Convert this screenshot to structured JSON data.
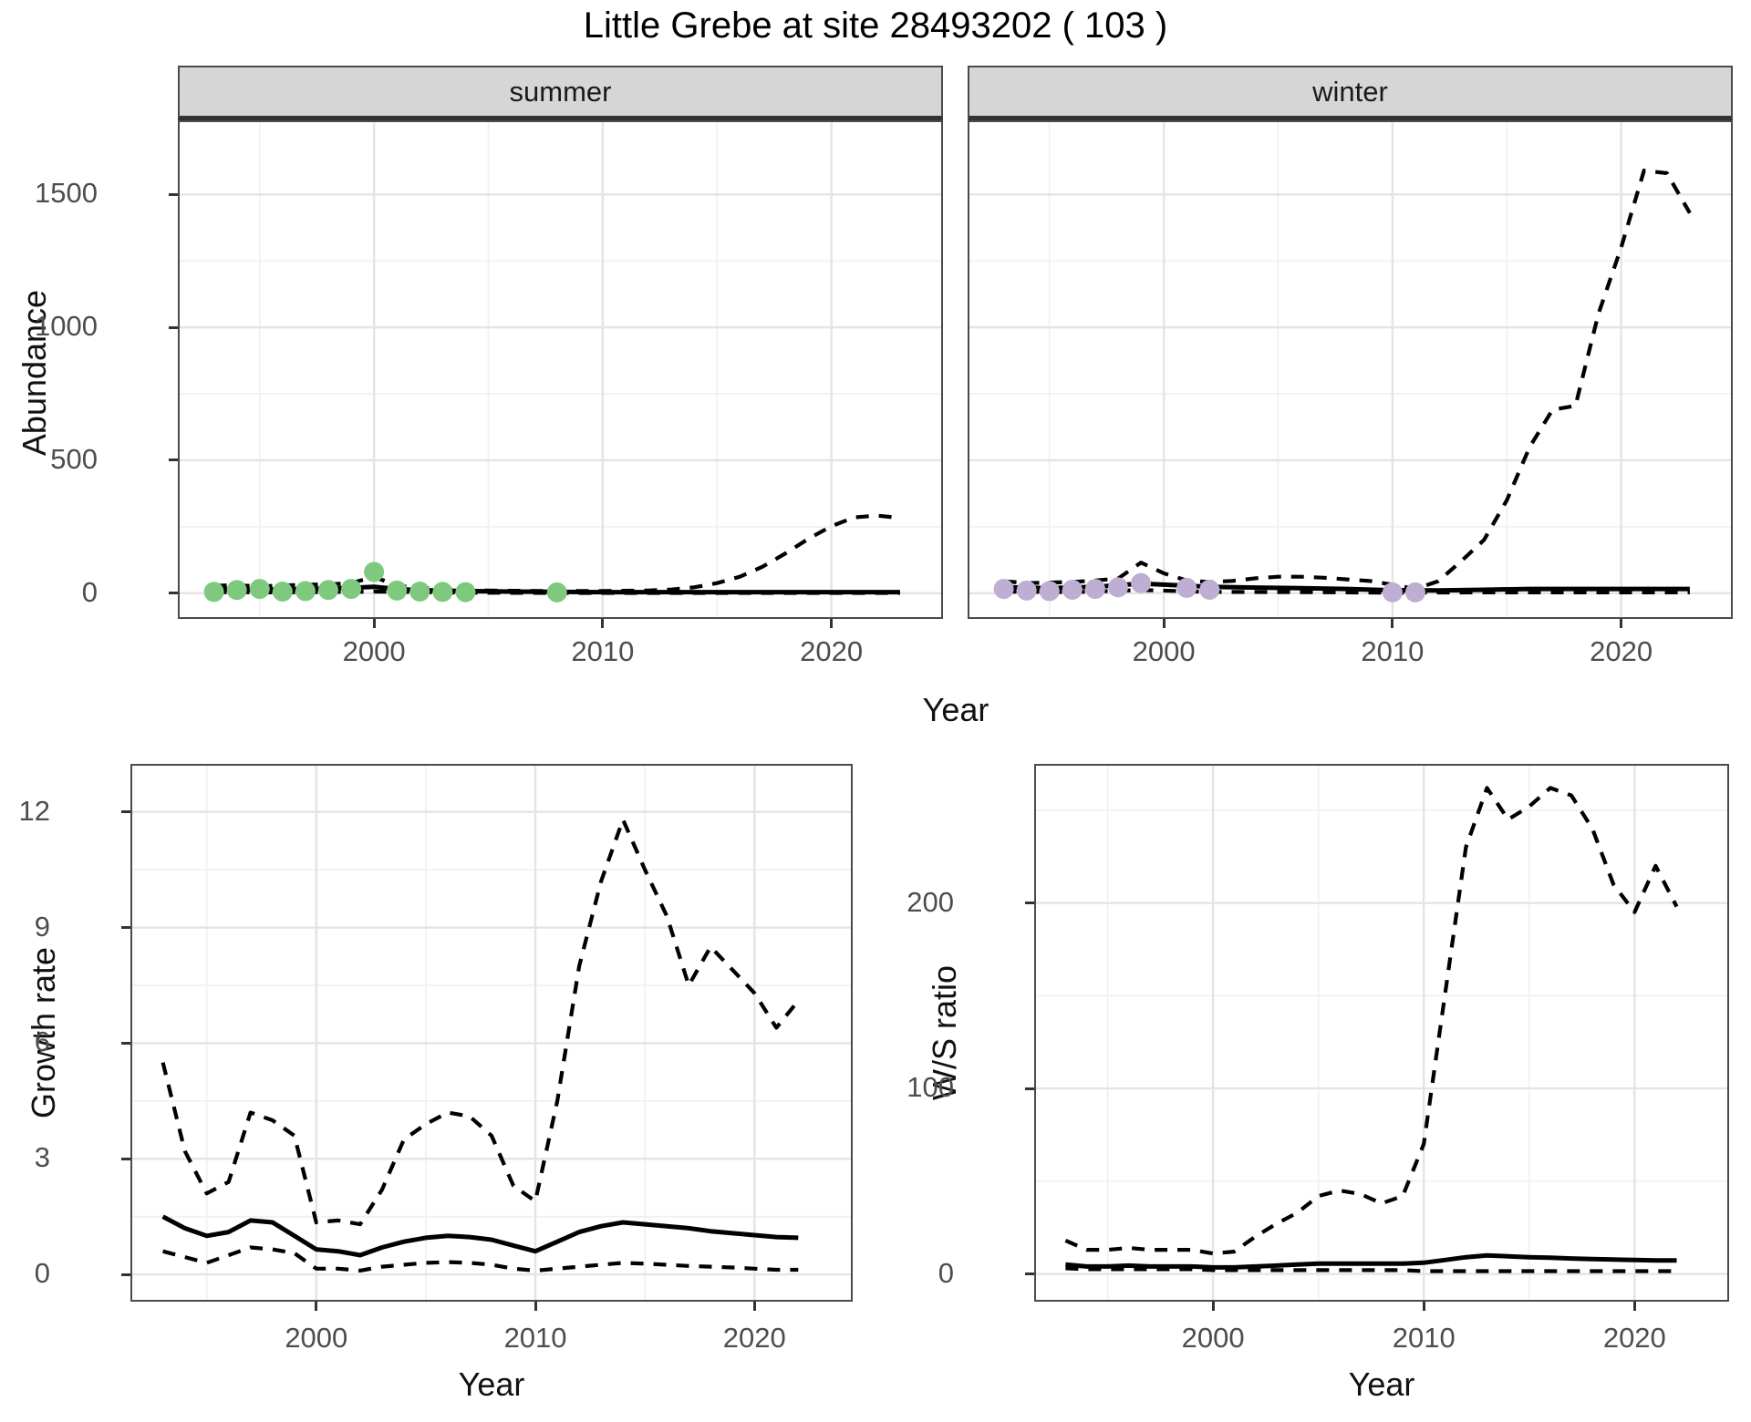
{
  "title": "Little Grebe at site 28493202 ( 103 )",
  "facets": [
    {
      "label": "summer"
    },
    {
      "label": "winter"
    }
  ],
  "axes": {
    "top_y": "Abundance",
    "top_x": "Year",
    "growth_y": "Growth rate",
    "growth_x": "Year",
    "ws_y": "W/S ratio",
    "ws_x": "Year"
  },
  "colors": {
    "summer_points": "#7FC97F",
    "winter_points": "#BEAED4",
    "line": "#000000",
    "strip_bg": "#D6D6D6",
    "grid_major": "#E4E4E4",
    "grid_minor": "#F1F1F1",
    "tick_text": "#4D4D4D"
  },
  "chart_data": [
    {
      "panel": "summer",
      "type": "line",
      "facet_label": "summer",
      "x_domain": [
        1991.5,
        2024.8
      ],
      "y_domain": [
        -90,
        1772
      ],
      "x_ticks": [
        2000,
        2010,
        2020
      ],
      "x_minor": [
        1995,
        2005,
        2015
      ],
      "y_ticks": [
        0,
        500,
        1000,
        1500
      ],
      "y_minor": [
        250,
        750,
        1250
      ],
      "show_y_tick_labels": true,
      "series": [
        {
          "name": "upper_ci",
          "style": "dashed",
          "x": [
            1993,
            1994,
            1995,
            1996,
            1997,
            1998,
            1999,
            2000,
            2001,
            2002,
            2003,
            2004,
            2005,
            2006,
            2008,
            2010,
            2012,
            2013,
            2014,
            2015,
            2016,
            2017,
            2018,
            2019,
            2020,
            2021,
            2022,
            2023
          ],
          "y": [
            28,
            30,
            26,
            29,
            32,
            33,
            38,
            62,
            28,
            20,
            16,
            13,
            10,
            9,
            8,
            8,
            10,
            14,
            22,
            38,
            62,
            100,
            150,
            205,
            252,
            285,
            292,
            283
          ]
        },
        {
          "name": "lower_ci",
          "style": "dashed",
          "x": [
            1993,
            1996,
            2000,
            2004,
            2008,
            2012,
            2016,
            2020,
            2023
          ],
          "y": [
            4,
            3,
            6,
            2,
            1,
            1,
            1,
            1,
            1
          ]
        },
        {
          "name": "fit",
          "style": "solid",
          "x": [
            1993,
            1995,
            1997,
            1999,
            2000,
            2001,
            2002,
            2004,
            2006,
            2008,
            2010,
            2013,
            2016,
            2020,
            2023
          ],
          "y": [
            15,
            13,
            16,
            20,
            24,
            16,
            11,
            8,
            6,
            5,
            4,
            4,
            4,
            4,
            4
          ]
        },
        {
          "name": "observed",
          "style": "points",
          "color": "#7FC97F",
          "x": [
            1993,
            1994,
            1995,
            1996,
            1997,
            1998,
            1999,
            2000,
            2001,
            2002,
            2003,
            2004,
            2008
          ],
          "y": [
            5,
            12,
            16,
            6,
            8,
            12,
            16,
            80,
            10,
            6,
            5,
            4,
            3
          ]
        }
      ]
    },
    {
      "panel": "winter",
      "type": "line",
      "facet_label": "winter",
      "x_domain": [
        1991.5,
        2024.8
      ],
      "y_domain": [
        -90,
        1772
      ],
      "x_ticks": [
        2000,
        2010,
        2020
      ],
      "x_minor": [
        1995,
        2005,
        2015
      ],
      "y_ticks": [
        0,
        500,
        1000,
        1500
      ],
      "y_minor": [
        250,
        750,
        1250
      ],
      "show_y_tick_labels": false,
      "series": [
        {
          "name": "upper_ci",
          "style": "dashed",
          "x": [
            1993,
            1994,
            1995,
            1996,
            1997,
            1998,
            1999,
            2000,
            2001,
            2002,
            2003,
            2004,
            2005,
            2006,
            2007,
            2008,
            2009,
            2010,
            2011,
            2012,
            2013,
            2014,
            2015,
            2016,
            2017,
            2018,
            2019,
            2020,
            2021,
            2022,
            2023
          ],
          "y": [
            45,
            38,
            40,
            42,
            48,
            55,
            115,
            75,
            48,
            42,
            46,
            56,
            62,
            62,
            58,
            52,
            46,
            32,
            16,
            45,
            120,
            200,
            350,
            550,
            690,
            705,
            1050,
            1300,
            1590,
            1580,
            1430
          ]
        },
        {
          "name": "lower_ci",
          "style": "dashed",
          "x": [
            1993,
            1996,
            1999,
            2002,
            2006,
            2010,
            2014,
            2018,
            2023
          ],
          "y": [
            6,
            4,
            12,
            5,
            4,
            2,
            3,
            3,
            3
          ]
        },
        {
          "name": "fit",
          "style": "solid",
          "x": [
            1993,
            1995,
            1997,
            1999,
            2000,
            2002,
            2004,
            2006,
            2008,
            2010,
            2012,
            2014,
            2016,
            2018,
            2020,
            2023
          ],
          "y": [
            22,
            19,
            24,
            36,
            32,
            24,
            21,
            19,
            16,
            11,
            10,
            13,
            16,
            16,
            16,
            16
          ]
        },
        {
          "name": "observed",
          "style": "points",
          "color": "#BEAED4",
          "x": [
            1993,
            1994,
            1995,
            1996,
            1997,
            1998,
            1999,
            2001,
            2002,
            2010,
            2011
          ],
          "y": [
            16,
            10,
            8,
            13,
            16,
            22,
            38,
            20,
            13,
            3,
            3
          ]
        }
      ]
    },
    {
      "panel": "growth",
      "type": "line",
      "title": "Growth rate",
      "x_domain": [
        1991.6,
        2024.4
      ],
      "y_domain": [
        -0.66,
        13.2
      ],
      "x_ticks": [
        2000,
        2010,
        2020
      ],
      "x_minor": [
        1995,
        2005,
        2015
      ],
      "y_ticks": [
        0,
        3,
        6,
        9,
        12
      ],
      "y_minor": [
        1.5,
        4.5,
        7.5,
        10.5
      ],
      "show_y_tick_labels": true,
      "series": [
        {
          "name": "upper_ci",
          "style": "dashed",
          "x": [
            1993,
            1994,
            1995,
            1996,
            1997,
            1998,
            1999,
            2000,
            2001,
            2002,
            2003,
            2004,
            2005,
            2006,
            2007,
            2008,
            2009,
            2010,
            2011,
            2012,
            2013,
            2014,
            2015,
            2016,
            2017,
            2018,
            2019,
            2020,
            2021,
            2022
          ],
          "y": [
            5.5,
            3.2,
            2.1,
            2.4,
            4.2,
            4.0,
            3.6,
            1.35,
            1.4,
            1.3,
            2.2,
            3.5,
            3.9,
            4.2,
            4.1,
            3.6,
            2.3,
            1.9,
            4.5,
            8.0,
            10.2,
            11.8,
            10.5,
            9.3,
            7.5,
            8.5,
            7.9,
            7.3,
            6.4,
            7.1
          ]
        },
        {
          "name": "lower_ci",
          "style": "dashed",
          "x": [
            1993,
            1994,
            1995,
            1996,
            1997,
            1998,
            1999,
            2000,
            2001,
            2002,
            2003,
            2004,
            2005,
            2006,
            2007,
            2008,
            2009,
            2010,
            2011,
            2012,
            2013,
            2014,
            2015,
            2016,
            2017,
            2018,
            2019,
            2020,
            2021,
            2022
          ],
          "y": [
            0.6,
            0.45,
            0.3,
            0.5,
            0.7,
            0.65,
            0.55,
            0.15,
            0.15,
            0.1,
            0.2,
            0.25,
            0.3,
            0.32,
            0.3,
            0.25,
            0.15,
            0.1,
            0.15,
            0.2,
            0.25,
            0.3,
            0.28,
            0.25,
            0.22,
            0.2,
            0.18,
            0.15,
            0.12,
            0.12
          ]
        },
        {
          "name": "fit",
          "style": "solid",
          "x": [
            1993,
            1994,
            1995,
            1996,
            1997,
            1998,
            1999,
            2000,
            2001,
            2002,
            2003,
            2004,
            2005,
            2006,
            2007,
            2008,
            2009,
            2010,
            2011,
            2012,
            2013,
            2014,
            2015,
            2016,
            2017,
            2018,
            2019,
            2020,
            2021,
            2022
          ],
          "y": [
            1.5,
            1.2,
            1.0,
            1.1,
            1.4,
            1.35,
            1.0,
            0.65,
            0.6,
            0.5,
            0.7,
            0.85,
            0.95,
            1.0,
            0.97,
            0.9,
            0.75,
            0.6,
            0.85,
            1.1,
            1.25,
            1.35,
            1.3,
            1.25,
            1.2,
            1.12,
            1.07,
            1.02,
            0.97,
            0.95
          ]
        }
      ]
    },
    {
      "panel": "ws",
      "type": "line",
      "title": "W/S ratio",
      "x_domain": [
        1991.6,
        2024.4
      ],
      "y_domain": [
        -14,
        274
      ],
      "x_ticks": [
        2000,
        2010,
        2020
      ],
      "x_minor": [
        1995,
        2005,
        2015
      ],
      "y_ticks": [
        0,
        100,
        200
      ],
      "y_minor": [
        50,
        150,
        250
      ],
      "show_y_tick_labels": true,
      "series": [
        {
          "name": "upper_ci",
          "style": "dashed",
          "x": [
            1993,
            1994,
            1995,
            1996,
            1997,
            1998,
            1999,
            2000,
            2001,
            2002,
            2003,
            2004,
            2005,
            2006,
            2007,
            2008,
            2009,
            2010,
            2011,
            2012,
            2013,
            2014,
            2015,
            2016,
            2017,
            2018,
            2019,
            2020,
            2021,
            2022
          ],
          "y": [
            18,
            13,
            13,
            14,
            13,
            13,
            13,
            11,
            12,
            20,
            27,
            33,
            42,
            45,
            43,
            38,
            42,
            70,
            150,
            230,
            262,
            245,
            252,
            262,
            258,
            240,
            210,
            195,
            220,
            198
          ]
        },
        {
          "name": "lower_ci",
          "style": "dashed",
          "x": [
            1993,
            1994,
            1995,
            1996,
            1997,
            1998,
            1999,
            2000,
            2001,
            2002,
            2003,
            2004,
            2005,
            2006,
            2007,
            2008,
            2009,
            2010,
            2011,
            2012,
            2013,
            2014,
            2015,
            2016,
            2017,
            2018,
            2019,
            2020,
            2021,
            2022
          ],
          "y": [
            3,
            2.5,
            2.5,
            2.5,
            2.5,
            2.5,
            2.5,
            2,
            2,
            2,
            2,
            2,
            2,
            2,
            2,
            2,
            2,
            1.5,
            1.5,
            1.5,
            1.5,
            1.5,
            1.5,
            1.5,
            1.5,
            1.5,
            1.5,
            1.5,
            1.5,
            1.5
          ]
        },
        {
          "name": "fit",
          "style": "solid",
          "x": [
            1993,
            1994,
            1995,
            1996,
            1997,
            1998,
            1999,
            2000,
            2001,
            2002,
            2003,
            2004,
            2005,
            2006,
            2007,
            2008,
            2009,
            2010,
            2011,
            2012,
            2013,
            2014,
            2015,
            2016,
            2017,
            2018,
            2019,
            2020,
            2021,
            2022
          ],
          "y": [
            5,
            4,
            4,
            4.5,
            4,
            4,
            4,
            3.5,
            3.5,
            4,
            4.5,
            5,
            5.5,
            5.5,
            5.5,
            5.5,
            5.5,
            6,
            7.5,
            9,
            10,
            9.5,
            9,
            8.7,
            8.3,
            8,
            7.7,
            7.5,
            7.3,
            7.3
          ]
        }
      ]
    }
  ]
}
